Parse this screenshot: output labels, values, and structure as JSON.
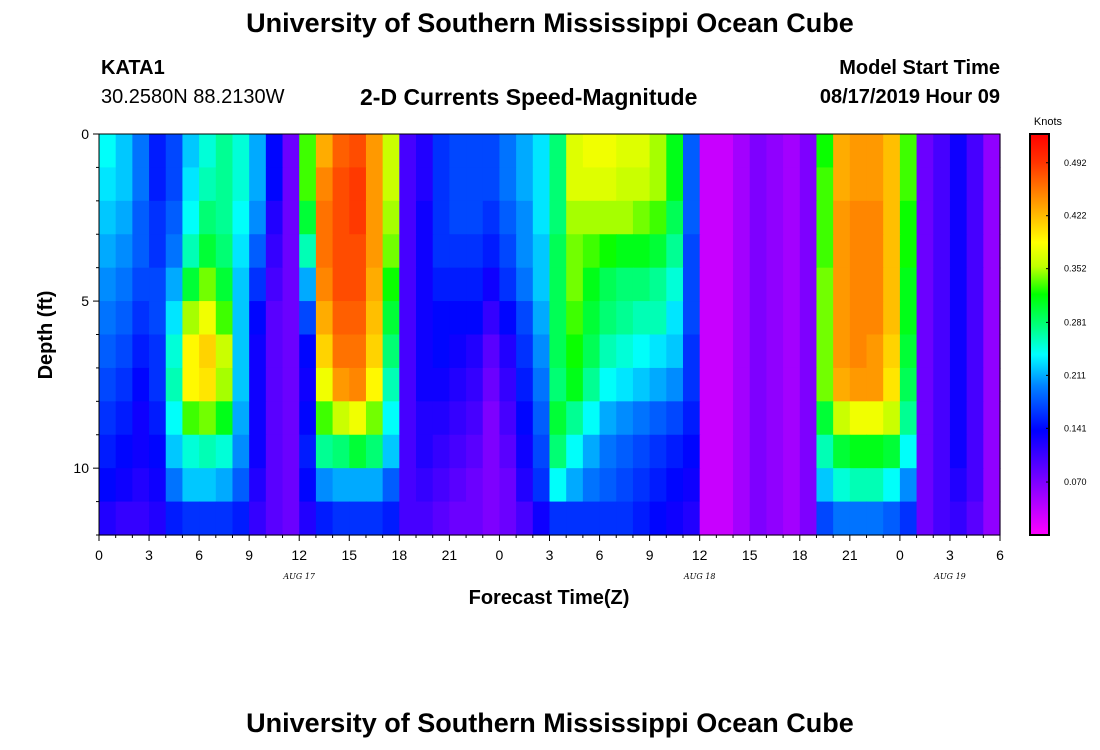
{
  "header": {
    "title": "University of Southern Mississippi Ocean Cube",
    "station_id": "KATA1",
    "coordinates": "30.2580N 88.2130W",
    "subtitle": "2-D Currents Speed-Magnitude",
    "model_start_label": "Model Start Time",
    "model_start_value": "08/17/2019 Hour 09"
  },
  "footer": {
    "title": "University of Southern Mississippi Ocean Cube"
  },
  "chart_data": {
    "type": "heatmap",
    "title": "2-D Currents Speed-Magnitude",
    "xlabel": "Forecast Time(Z)",
    "ylabel": "Depth (ft)",
    "x_range_hours": [
      0,
      54
    ],
    "x_tick_hours": [
      0,
      3,
      6,
      9,
      12,
      15,
      18,
      21,
      24,
      27,
      30,
      33,
      36,
      39,
      42,
      45,
      48,
      51,
      54
    ],
    "x_tick_labels": [
      "0",
      "3",
      "6",
      "9",
      "12",
      "15",
      "18",
      "21",
      "0",
      "3",
      "6",
      "9",
      "12",
      "15",
      "18",
      "21",
      "0",
      "3",
      "6"
    ],
    "date_labels": [
      {
        "hour": 12,
        "text": "AUG 17"
      },
      {
        "hour": 36,
        "text": "AUG 18"
      },
      {
        "hour": 51,
        "text": "AUG 19"
      }
    ],
    "y_range_ft": [
      0,
      12
    ],
    "y_tick_values": [
      0,
      5,
      10
    ],
    "y_tick_labels": [
      "0",
      "5",
      "10"
    ],
    "colorbar": {
      "title": "Knots",
      "min": 0.0,
      "max": 0.53,
      "tick_values": [
        0.492,
        0.422,
        0.352,
        0.281,
        0.211,
        0.141,
        0.07
      ],
      "tick_labels": [
        "0.492",
        "0.422",
        "0.352",
        "0.281",
        "0.211",
        "0.141",
        "0.070"
      ]
    },
    "grid": {
      "hours_per_column": 1,
      "depth_layers_ft": [
        0.5,
        1.5,
        2.5,
        3.5,
        4.5,
        5.5,
        6.5,
        7.5,
        8.5,
        9.5,
        10.5,
        11.5
      ],
      "note": "values in knots, columns 0..53 by forecast hour, rows top (surface) to bottom"
    },
    "speed_knots": [
      [
        0.24,
        0.22,
        0.19,
        0.15,
        0.17,
        0.22,
        0.25,
        0.27,
        0.25,
        0.21,
        0.14,
        0.08,
        0.33,
        0.43,
        0.47,
        0.48,
        0.44,
        0.36,
        0.1,
        0.12,
        0.16,
        0.17,
        0.17,
        0.17,
        0.19,
        0.21,
        0.23,
        0.28,
        0.37,
        0.38,
        0.38,
        0.37,
        0.37,
        0.35,
        0.31,
        0.18,
        0.03,
        0.03,
        0.05,
        0.07,
        0.06,
        0.05,
        0.07,
        0.32,
        0.43,
        0.44,
        0.44,
        0.42,
        0.33,
        0.08,
        0.1,
        0.13,
        0.1,
        0.06
      ],
      [
        0.23,
        0.22,
        0.19,
        0.15,
        0.17,
        0.23,
        0.26,
        0.27,
        0.25,
        0.21,
        0.14,
        0.08,
        0.33,
        0.45,
        0.48,
        0.49,
        0.44,
        0.36,
        0.1,
        0.12,
        0.16,
        0.17,
        0.17,
        0.17,
        0.19,
        0.21,
        0.23,
        0.28,
        0.37,
        0.37,
        0.37,
        0.36,
        0.36,
        0.35,
        0.31,
        0.18,
        0.03,
        0.03,
        0.05,
        0.07,
        0.06,
        0.05,
        0.07,
        0.33,
        0.43,
        0.44,
        0.44,
        0.42,
        0.33,
        0.08,
        0.1,
        0.13,
        0.1,
        0.06
      ],
      [
        0.22,
        0.21,
        0.18,
        0.16,
        0.18,
        0.24,
        0.28,
        0.27,
        0.24,
        0.2,
        0.12,
        0.08,
        0.3,
        0.46,
        0.48,
        0.49,
        0.44,
        0.35,
        0.1,
        0.13,
        0.16,
        0.17,
        0.17,
        0.16,
        0.18,
        0.2,
        0.23,
        0.28,
        0.35,
        0.35,
        0.35,
        0.35,
        0.34,
        0.33,
        0.29,
        0.18,
        0.03,
        0.03,
        0.05,
        0.07,
        0.06,
        0.05,
        0.07,
        0.33,
        0.44,
        0.45,
        0.45,
        0.42,
        0.32,
        0.08,
        0.1,
        0.13,
        0.1,
        0.06
      ],
      [
        0.21,
        0.2,
        0.18,
        0.16,
        0.19,
        0.26,
        0.3,
        0.28,
        0.23,
        0.18,
        0.11,
        0.08,
        0.26,
        0.46,
        0.48,
        0.48,
        0.44,
        0.34,
        0.1,
        0.13,
        0.16,
        0.16,
        0.16,
        0.15,
        0.17,
        0.2,
        0.22,
        0.29,
        0.34,
        0.33,
        0.32,
        0.31,
        0.31,
        0.3,
        0.27,
        0.17,
        0.03,
        0.03,
        0.05,
        0.07,
        0.06,
        0.05,
        0.07,
        0.33,
        0.44,
        0.45,
        0.45,
        0.42,
        0.32,
        0.08,
        0.1,
        0.13,
        0.1,
        0.06
      ],
      [
        0.2,
        0.19,
        0.17,
        0.17,
        0.21,
        0.3,
        0.34,
        0.3,
        0.22,
        0.16,
        0.1,
        0.08,
        0.21,
        0.45,
        0.48,
        0.48,
        0.43,
        0.32,
        0.1,
        0.13,
        0.15,
        0.15,
        0.15,
        0.13,
        0.16,
        0.19,
        0.22,
        0.29,
        0.34,
        0.31,
        0.29,
        0.28,
        0.28,
        0.27,
        0.25,
        0.17,
        0.03,
        0.03,
        0.05,
        0.07,
        0.06,
        0.05,
        0.07,
        0.34,
        0.44,
        0.45,
        0.45,
        0.42,
        0.31,
        0.08,
        0.1,
        0.13,
        0.1,
        0.06
      ],
      [
        0.19,
        0.18,
        0.16,
        0.17,
        0.23,
        0.35,
        0.38,
        0.33,
        0.22,
        0.14,
        0.09,
        0.08,
        0.17,
        0.43,
        0.47,
        0.47,
        0.42,
        0.3,
        0.1,
        0.13,
        0.14,
        0.14,
        0.14,
        0.11,
        0.14,
        0.17,
        0.21,
        0.29,
        0.33,
        0.3,
        0.28,
        0.27,
        0.26,
        0.26,
        0.23,
        0.17,
        0.03,
        0.03,
        0.05,
        0.07,
        0.06,
        0.05,
        0.07,
        0.34,
        0.44,
        0.45,
        0.45,
        0.42,
        0.31,
        0.08,
        0.1,
        0.13,
        0.1,
        0.06
      ],
      [
        0.18,
        0.17,
        0.15,
        0.16,
        0.25,
        0.39,
        0.41,
        0.36,
        0.22,
        0.13,
        0.09,
        0.08,
        0.14,
        0.41,
        0.46,
        0.46,
        0.41,
        0.28,
        0.1,
        0.13,
        0.14,
        0.13,
        0.12,
        0.09,
        0.12,
        0.16,
        0.2,
        0.29,
        0.32,
        0.29,
        0.26,
        0.25,
        0.24,
        0.23,
        0.22,
        0.16,
        0.03,
        0.03,
        0.05,
        0.07,
        0.06,
        0.05,
        0.07,
        0.34,
        0.44,
        0.45,
        0.44,
        0.41,
        0.3,
        0.08,
        0.1,
        0.13,
        0.1,
        0.06
      ],
      [
        0.17,
        0.16,
        0.14,
        0.16,
        0.26,
        0.39,
        0.4,
        0.35,
        0.22,
        0.13,
        0.09,
        0.08,
        0.13,
        0.38,
        0.44,
        0.45,
        0.39,
        0.26,
        0.1,
        0.13,
        0.13,
        0.12,
        0.11,
        0.08,
        0.11,
        0.15,
        0.19,
        0.28,
        0.31,
        0.27,
        0.24,
        0.23,
        0.22,
        0.21,
        0.2,
        0.16,
        0.03,
        0.03,
        0.05,
        0.07,
        0.06,
        0.05,
        0.07,
        0.34,
        0.43,
        0.44,
        0.44,
        0.4,
        0.29,
        0.08,
        0.1,
        0.13,
        0.1,
        0.06
      ],
      [
        0.16,
        0.15,
        0.13,
        0.15,
        0.24,
        0.33,
        0.34,
        0.31,
        0.21,
        0.13,
        0.09,
        0.08,
        0.14,
        0.33,
        0.36,
        0.38,
        0.34,
        0.24,
        0.1,
        0.12,
        0.12,
        0.11,
        0.1,
        0.07,
        0.1,
        0.14,
        0.18,
        0.3,
        0.27,
        0.24,
        0.21,
        0.2,
        0.19,
        0.18,
        0.17,
        0.15,
        0.03,
        0.03,
        0.05,
        0.07,
        0.06,
        0.05,
        0.07,
        0.3,
        0.36,
        0.38,
        0.38,
        0.36,
        0.27,
        0.08,
        0.1,
        0.13,
        0.1,
        0.06
      ],
      [
        0.15,
        0.14,
        0.13,
        0.14,
        0.22,
        0.25,
        0.26,
        0.25,
        0.2,
        0.13,
        0.09,
        0.08,
        0.15,
        0.27,
        0.28,
        0.3,
        0.28,
        0.22,
        0.1,
        0.12,
        0.11,
        0.1,
        0.09,
        0.07,
        0.09,
        0.13,
        0.17,
        0.28,
        0.24,
        0.21,
        0.19,
        0.18,
        0.17,
        0.16,
        0.15,
        0.14,
        0.03,
        0.03,
        0.05,
        0.07,
        0.06,
        0.05,
        0.07,
        0.26,
        0.3,
        0.31,
        0.31,
        0.3,
        0.24,
        0.08,
        0.1,
        0.13,
        0.1,
        0.06
      ],
      [
        0.14,
        0.13,
        0.12,
        0.13,
        0.19,
        0.22,
        0.22,
        0.21,
        0.18,
        0.12,
        0.09,
        0.08,
        0.14,
        0.2,
        0.21,
        0.21,
        0.21,
        0.18,
        0.1,
        0.11,
        0.1,
        0.09,
        0.08,
        0.07,
        0.08,
        0.12,
        0.16,
        0.24,
        0.21,
        0.19,
        0.18,
        0.17,
        0.16,
        0.15,
        0.14,
        0.13,
        0.03,
        0.03,
        0.05,
        0.07,
        0.06,
        0.05,
        0.07,
        0.22,
        0.25,
        0.26,
        0.26,
        0.24,
        0.2,
        0.08,
        0.1,
        0.12,
        0.1,
        0.06
      ],
      [
        0.12,
        0.11,
        0.11,
        0.12,
        0.15,
        0.16,
        0.16,
        0.16,
        0.15,
        0.11,
        0.09,
        0.08,
        0.12,
        0.15,
        0.16,
        0.16,
        0.16,
        0.15,
        0.1,
        0.1,
        0.09,
        0.08,
        0.08,
        0.07,
        0.08,
        0.1,
        0.13,
        0.16,
        0.16,
        0.16,
        0.16,
        0.16,
        0.15,
        0.14,
        0.13,
        0.12,
        0.03,
        0.03,
        0.05,
        0.07,
        0.06,
        0.05,
        0.07,
        0.17,
        0.19,
        0.19,
        0.19,
        0.18,
        0.16,
        0.08,
        0.1,
        0.11,
        0.09,
        0.06
      ]
    ]
  }
}
